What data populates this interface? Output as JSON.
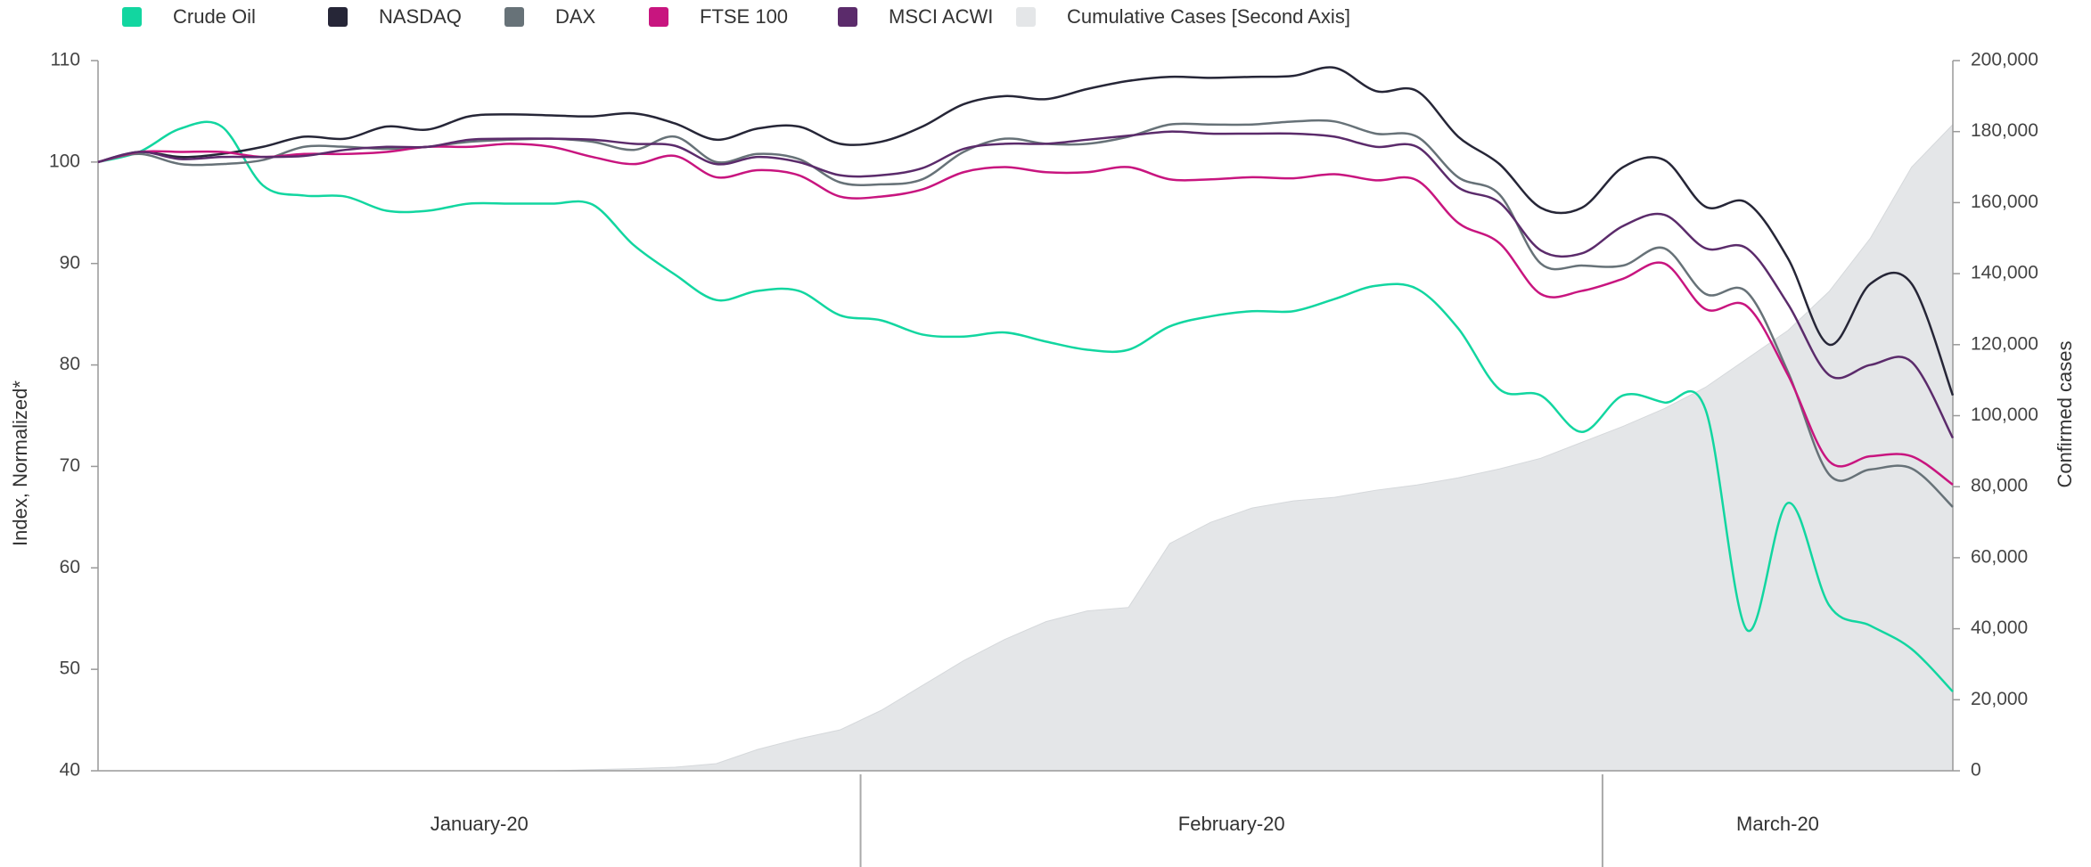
{
  "chart_data": {
    "type": "line",
    "y_label": "Index, Normalized*",
    "y2_label": "Confirmed cases",
    "categories": [
      null,
      null,
      null,
      null,
      null,
      null,
      null,
      null,
      null,
      null,
      null,
      null,
      null,
      null,
      null,
      null,
      null,
      null,
      null,
      null,
      null,
      null,
      null,
      null,
      null,
      null,
      null,
      null,
      null,
      null,
      null,
      null,
      null,
      null,
      null,
      null,
      null,
      null,
      null,
      null,
      null,
      null,
      null,
      null,
      null,
      null
    ],
    "category_groups": [
      {
        "label": "January-20",
        "start": 0,
        "end": 18
      },
      {
        "label": "February-20",
        "start": 19,
        "end": 36
      },
      {
        "label": "March-20",
        "start": 37,
        "end": 45
      }
    ],
    "ylim": [
      40,
      110
    ],
    "yticks": [
      40,
      50,
      60,
      70,
      80,
      90,
      100,
      110
    ],
    "y2lim": [
      0,
      200000
    ],
    "y2ticks": [
      0,
      {
        "value": 20000,
        "label": "20,000"
      },
      {
        "value": 40000,
        "label": "40,000"
      },
      {
        "value": 60000,
        "label": "60,000"
      },
      {
        "value": 80000,
        "label": "80,000"
      },
      {
        "value": 100000,
        "label": "100,000"
      },
      {
        "value": 120000,
        "label": "120,000"
      },
      {
        "value": 140000,
        "label": "140,000"
      },
      {
        "value": 160000,
        "label": "160,000"
      },
      {
        "value": 180000,
        "label": "180,000"
      },
      {
        "value": 200000,
        "label": "200,000"
      }
    ],
    "legend": "top",
    "series": [
      {
        "name": "Crude Oil",
        "color": "#12d6a0",
        "values": [
          100,
          101,
          103.3,
          103.5,
          97.7,
          96.7,
          96.6,
          95.2,
          95.2,
          95.9,
          95.9,
          95.9,
          95.8,
          91.8,
          88.9,
          86.4,
          87.3,
          87.3,
          84.9,
          84.4,
          83,
          82.8,
          83.2,
          82.3,
          81.5,
          81.5,
          83.8,
          84.8,
          85.3,
          85.3,
          86.5,
          87.8,
          87.5,
          83.6,
          77.6,
          77,
          73.4,
          77,
          76.3,
          75.6,
          53.9,
          66.4,
          56.3,
          54.3,
          52,
          47.8
        ]
      },
      {
        "name": "NASDAQ",
        "color": "#262637",
        "values": [
          100,
          101,
          100.5,
          100.8,
          101.5,
          102.5,
          102.3,
          103.5,
          103.2,
          104.5,
          104.7,
          104.6,
          104.5,
          104.8,
          103.8,
          102.2,
          103.3,
          103.5,
          101.8,
          102,
          103.5,
          105.7,
          106.5,
          106.2,
          107.2,
          108,
          108.4,
          108.3,
          108.4,
          108.5,
          109.3,
          107,
          107,
          102.5,
          99.8,
          95.5,
          95.5,
          99.5,
          100.2,
          95.6,
          96,
          90.5,
          82,
          88,
          88,
          77
        ]
      },
      {
        "name": "DAX",
        "color": "#677278",
        "values": [
          100,
          100.8,
          99.8,
          99.8,
          100.2,
          101.5,
          101.5,
          101.3,
          101.5,
          102,
          102.2,
          102.3,
          102,
          101.2,
          102.5,
          100,
          100.8,
          100.3,
          98,
          97.8,
          98.3,
          101,
          102.3,
          101.8,
          101.8,
          102.5,
          103.7,
          103.7,
          103.7,
          104,
          104,
          102.8,
          102.5,
          98.5,
          96.8,
          90,
          89.8,
          89.8,
          91.5,
          87,
          87.2,
          79.3,
          69.2,
          69.7,
          69.8,
          66
        ]
      },
      {
        "name": "FTSE 100",
        "color": "#c8157f",
        "values": [
          100,
          101,
          101,
          101,
          100.5,
          100.8,
          100.8,
          101,
          101.5,
          101.5,
          101.8,
          101.5,
          100.5,
          99.8,
          100.6,
          98.5,
          99.2,
          98.7,
          96.6,
          96.6,
          97.3,
          99,
          99.5,
          99,
          99,
          99.5,
          98.3,
          98.3,
          98.5,
          98.4,
          98.8,
          98.2,
          98.2,
          94,
          92,
          87,
          87.3,
          88.5,
          90,
          85.5,
          85.8,
          79,
          70.5,
          71,
          71,
          68.2
        ]
      },
      {
        "name": "MSCI ACWI",
        "color": "#5b2b6b",
        "values": [
          100,
          101,
          100.3,
          100.5,
          100.5,
          100.6,
          101.2,
          101.5,
          101.5,
          102.2,
          102.3,
          102.3,
          102.2,
          101.8,
          101.6,
          99.8,
          100.5,
          100,
          98.7,
          98.7,
          99.4,
          101.3,
          101.8,
          101.8,
          102.2,
          102.6,
          103,
          102.8,
          102.8,
          102.8,
          102.5,
          101.5,
          101.5,
          97.5,
          96,
          91.3,
          91,
          93.7,
          94.8,
          91.5,
          91.5,
          86,
          79,
          80,
          80.3,
          72.8
        ]
      },
      {
        "name": "Cumulative Cases [Second Axis]",
        "color": "#e4e6e8",
        "axis": "y2",
        "kind": "area",
        "values": [
          0,
          0,
          0,
          0,
          0,
          0,
          0,
          0,
          0,
          0,
          0,
          0,
          300,
          600,
          1000,
          2000,
          6000,
          9000,
          11500,
          17000,
          24000,
          31000,
          37000,
          42000,
          45000,
          46000,
          64000,
          70000,
          74000,
          76000,
          77000,
          79000,
          80500,
          82500,
          85000,
          88000,
          92500,
          97000,
          102000,
          108000,
          116000,
          124000,
          135000,
          150000,
          170000,
          182000
        ]
      }
    ]
  }
}
